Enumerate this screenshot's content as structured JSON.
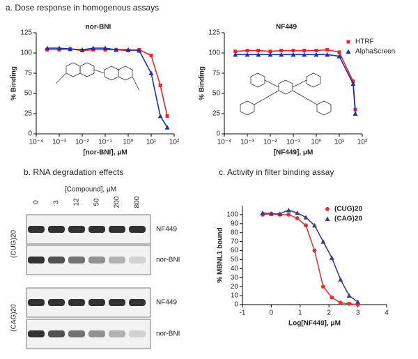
{
  "figure": {
    "panel_a": "a. Dose response in homogenous assays",
    "panel_b": "b. RNA degradation effects",
    "panel_c": "c. Activity in filter binding assay"
  },
  "blot": {
    "axis_label": "[Compound], μM",
    "lanes": [
      "0",
      "3",
      "12",
      "50",
      "200",
      "800"
    ],
    "groups": [
      {
        "label": "(CUG)20",
        "rows": [
          "NF449",
          "nor-BNI"
        ]
      },
      {
        "label": "(CAG)20",
        "rows": [
          "NF449",
          "nor-BNI"
        ]
      }
    ]
  },
  "chart_data": [
    {
      "type": "line",
      "title": "nor-BNI",
      "xlabel": "[nor-BNI], μM",
      "ylabel": "% Binding",
      "xscale": "log",
      "x": [
        0.0003,
        0.001,
        0.003,
        0.01,
        0.03,
        0.1,
        0.3,
        1,
        3,
        10,
        25,
        50
      ],
      "series": [
        {
          "color": "#e8262a",
          "marker": "square",
          "values": [
            104,
            104,
            105,
            103,
            104,
            104,
            104,
            103,
            104,
            97,
            60,
            22
          ]
        },
        {
          "color": "#1f2fa8",
          "marker": "triangle",
          "values": [
            106,
            106,
            105,
            104,
            106,
            106,
            104,
            104,
            103,
            75,
            22,
            8
          ]
        }
      ],
      "xlim": [
        0.0001,
        100
      ],
      "xticks": [
        {
          "value": 0.0001,
          "label": "10⁻⁴"
        },
        {
          "value": 0.001,
          "label": "10⁻³"
        },
        {
          "value": 0.01,
          "label": "10⁻²"
        },
        {
          "value": 0.1,
          "label": "10⁻¹"
        },
        {
          "value": 1,
          "label": "10⁰"
        },
        {
          "value": 10,
          "label": "10¹"
        },
        {
          "value": 100,
          "label": "10²"
        }
      ],
      "ylim": [
        0,
        125
      ],
      "yticks": [
        0,
        25,
        50,
        75,
        100,
        125
      ],
      "legend": false
    },
    {
      "type": "line",
      "title": "NF449",
      "xlabel": "[NF449], μM",
      "ylabel": "% Binding",
      "xscale": "log",
      "x": [
        0.0003,
        0.001,
        0.003,
        0.01,
        0.03,
        0.1,
        0.3,
        1,
        3,
        10,
        40,
        50
      ],
      "series": [
        {
          "name": "HTRF",
          "color": "#e8262a",
          "marker": "square",
          "values": [
            102,
            103,
            103,
            102,
            103,
            103,
            103,
            103,
            104,
            101,
            65,
            30
          ]
        },
        {
          "name": "AlphaScreen",
          "color": "#1f2fa8",
          "marker": "triangle",
          "values": [
            98,
            98,
            98,
            98,
            98,
            98,
            98,
            98,
            98,
            96,
            62,
            25
          ]
        }
      ],
      "xlim": [
        0.0001,
        100
      ],
      "xticks": [
        {
          "value": 0.0001,
          "label": "10⁻⁴"
        },
        {
          "value": 0.001,
          "label": "10⁻³"
        },
        {
          "value": 0.01,
          "label": "10⁻²"
        },
        {
          "value": 0.1,
          "label": "10⁻¹"
        },
        {
          "value": 1,
          "label": "10⁰"
        },
        {
          "value": 10,
          "label": "10¹"
        },
        {
          "value": 100,
          "label": "10²"
        }
      ],
      "ylim": [
        0,
        125
      ],
      "yticks": [
        0,
        25,
        50,
        75,
        100,
        125
      ],
      "legend": "upper right"
    },
    {
      "type": "line",
      "xlabel": "Log[NF449], μM",
      "ylabel": "% MBNL1 bound",
      "xscale": "linear",
      "x": [
        -0.3,
        0,
        0.3,
        0.6,
        0.9,
        1.2,
        1.5,
        1.8,
        2.1,
        2.4,
        2.7,
        3
      ],
      "series": [
        {
          "name": "(CUG)20",
          "color": "#e0363a",
          "marker": "circle",
          "values": [
            100,
            101,
            100,
            100,
            96,
            88,
            60,
            20,
            8,
            2,
            1,
            0
          ]
        },
        {
          "name": "(CAG)20",
          "color": "#3a3c8c",
          "marker": "triangle",
          "values": [
            102,
            101,
            101,
            105,
            102,
            97,
            88,
            70,
            52,
            28,
            10,
            3
          ]
        }
      ],
      "xlim": [
        -1,
        4
      ],
      "xticks": [
        -1,
        0,
        1,
        2,
        3,
        4
      ],
      "ylim": [
        0,
        110
      ],
      "yticks": [
        0,
        10,
        20,
        30,
        40,
        50,
        60,
        70,
        80,
        90,
        100
      ],
      "legend": "upper right"
    }
  ]
}
